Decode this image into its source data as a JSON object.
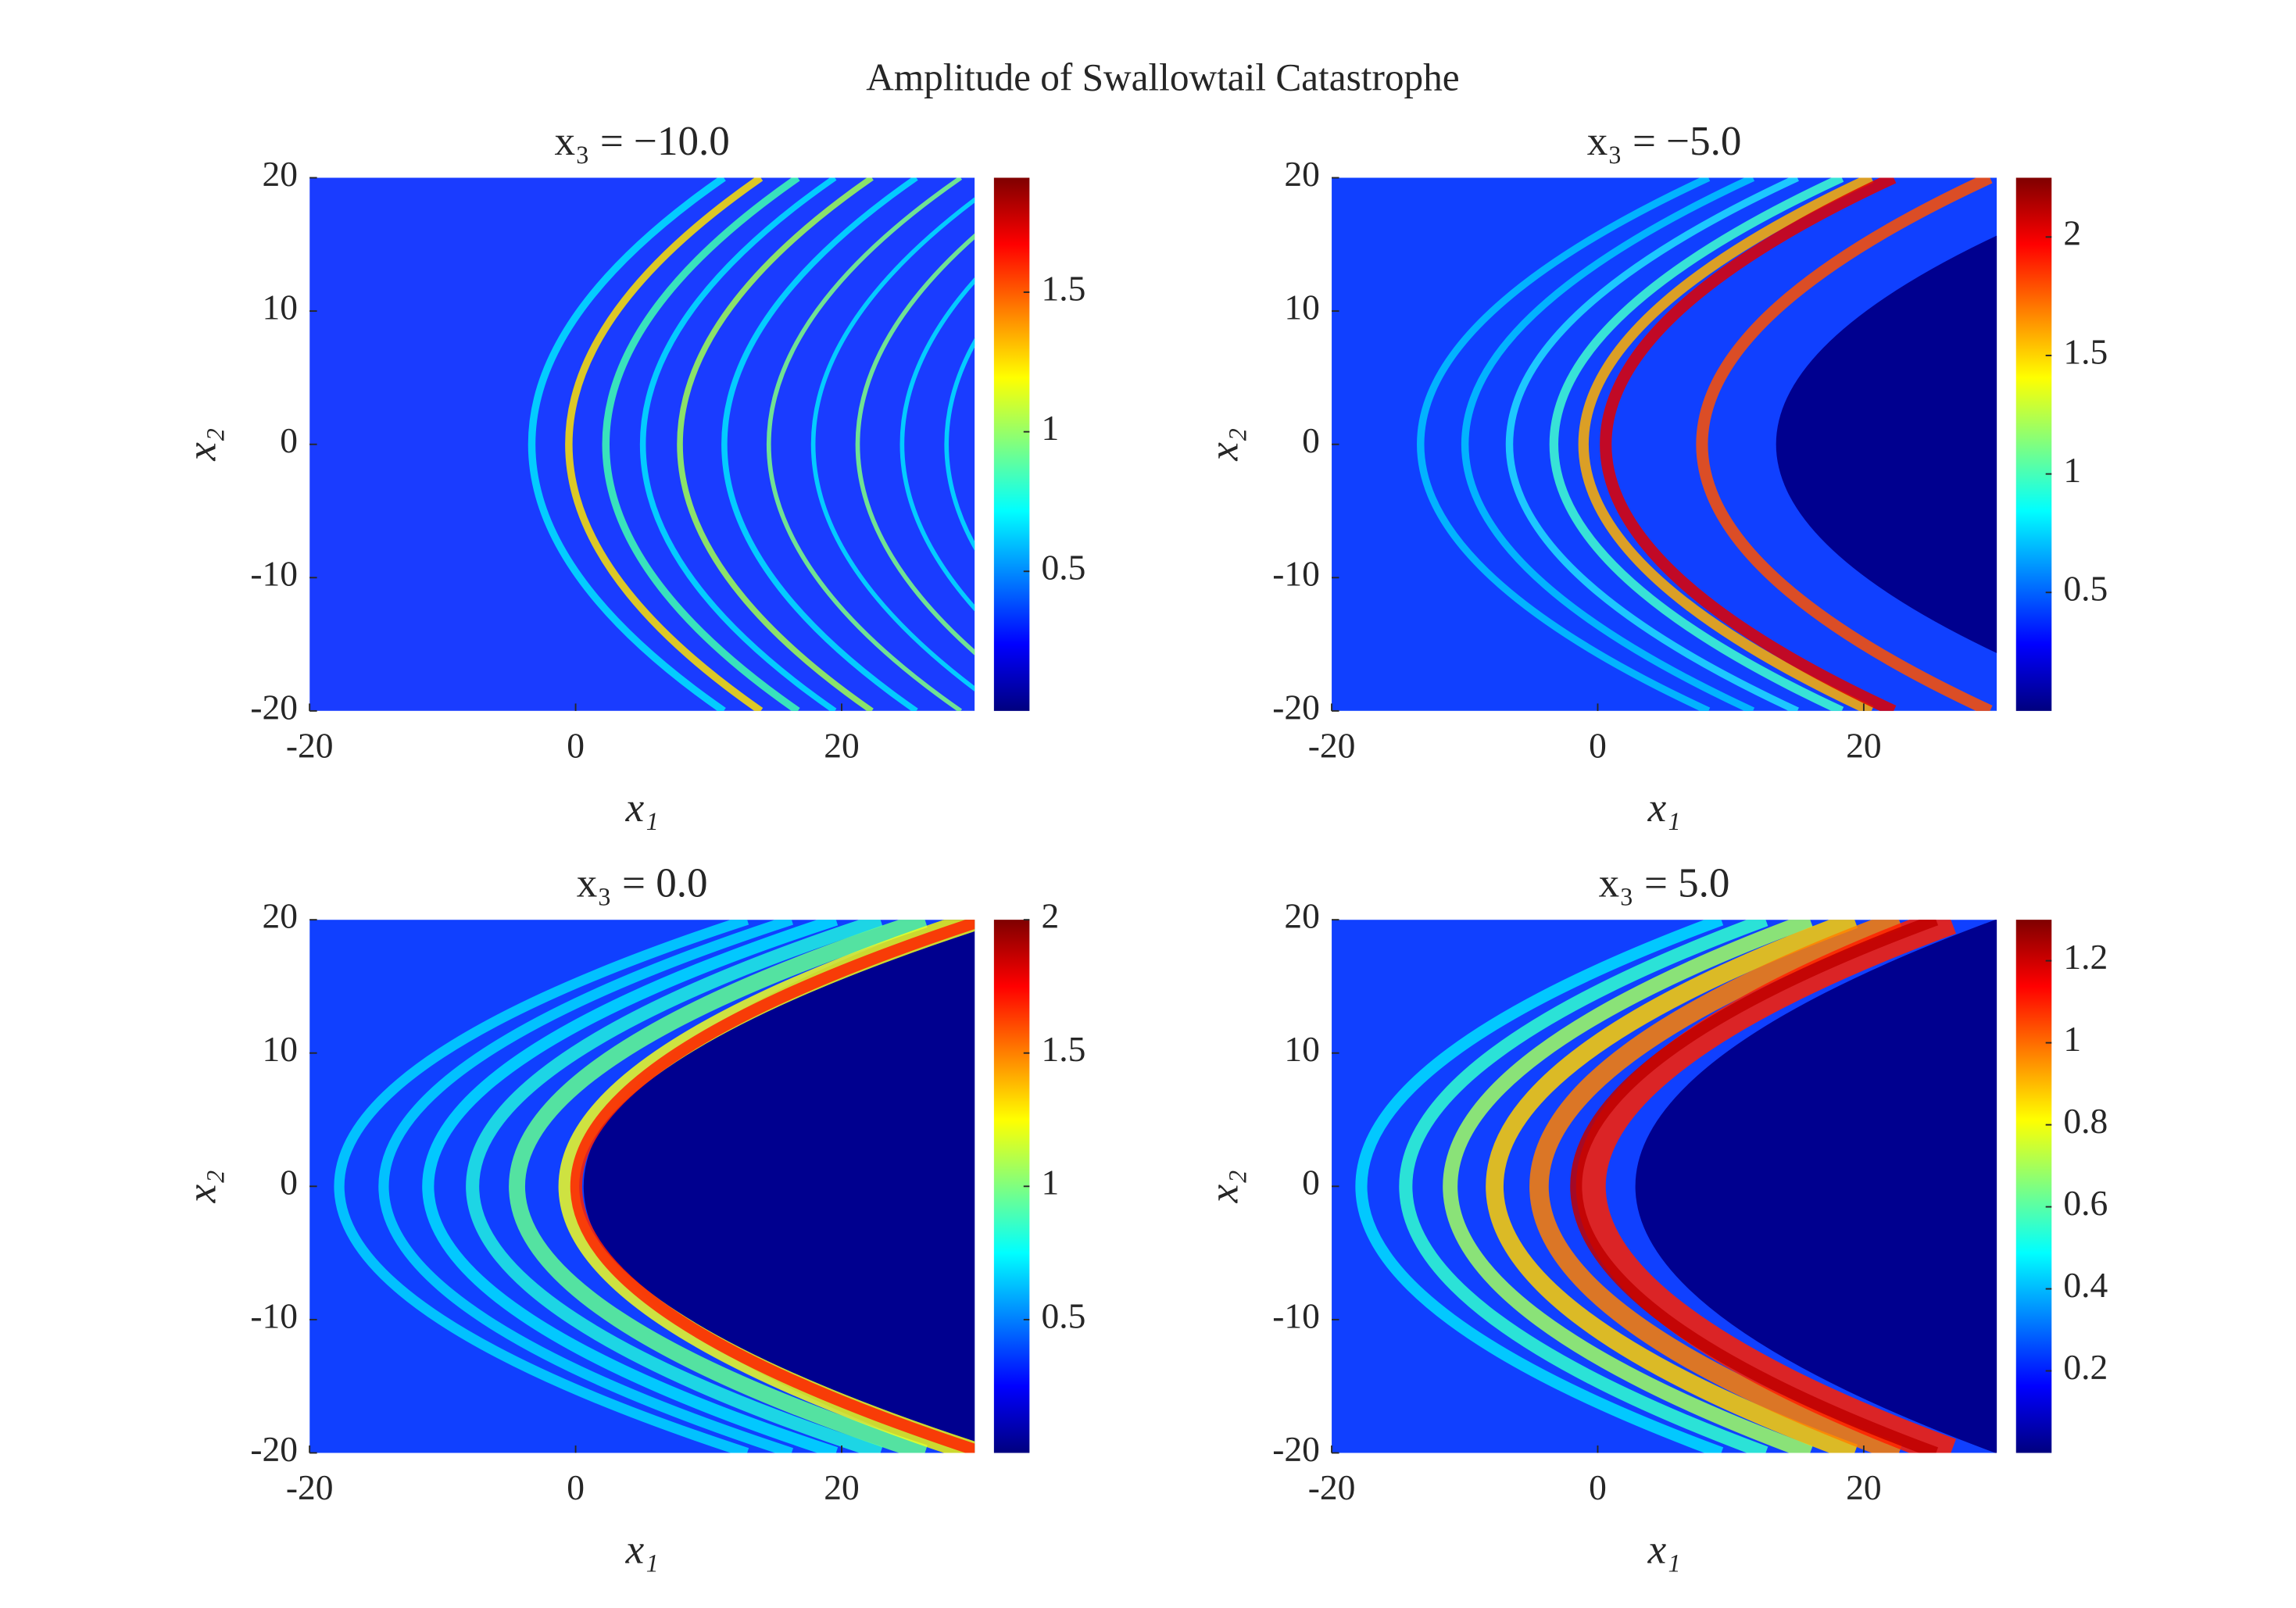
{
  "title": "Amplitude of Swallowtail Catastrophe",
  "chart_data": [
    {
      "type": "heatmap",
      "title": "x₃ = −10.0",
      "xlabel": "x₁",
      "ylabel": "x₂",
      "xlim": [
        -20,
        30
      ],
      "ylim": [
        -20,
        20
      ],
      "xticks": [
        -20,
        0,
        20
      ],
      "yticks": [
        -20,
        -10,
        0,
        10,
        20
      ],
      "colormap": "jet",
      "clim": [
        0,
        1.91
      ],
      "cticks": [
        0.5,
        1,
        1.5
      ]
    },
    {
      "type": "heatmap",
      "title": "x₃ = −5.0",
      "xlabel": "x₁",
      "ylabel": "x₂",
      "xlim": [
        -20,
        30
      ],
      "ylim": [
        -20,
        20
      ],
      "xticks": [
        -20,
        0,
        20
      ],
      "yticks": [
        -20,
        -10,
        0,
        10,
        20
      ],
      "colormap": "jet",
      "clim": [
        0,
        2.25
      ],
      "cticks": [
        0.5,
        1,
        1.5,
        2
      ]
    },
    {
      "type": "heatmap",
      "title": "x₃ = 0.0",
      "xlabel": "x₁",
      "ylabel": "x₂",
      "xlim": [
        -20,
        30
      ],
      "ylim": [
        -20,
        20
      ],
      "xticks": [
        -20,
        0,
        20
      ],
      "yticks": [
        -20,
        -10,
        0,
        10,
        20
      ],
      "colormap": "jet",
      "clim": [
        0,
        2.0
      ],
      "cticks": [
        0.5,
        1,
        1.5,
        2
      ]
    },
    {
      "type": "heatmap",
      "title": "x₃ = 5.0",
      "xlabel": "x₁",
      "ylabel": "x₂",
      "xlim": [
        -20,
        30
      ],
      "ylim": [
        -20,
        20
      ],
      "xticks": [
        -20,
        0,
        20
      ],
      "yticks": [
        -20,
        -10,
        0,
        10,
        20
      ],
      "colormap": "jet",
      "clim": [
        0,
        1.3
      ],
      "cticks": [
        0.2,
        0.4,
        0.6,
        0.8,
        1,
        1.2
      ]
    }
  ]
}
